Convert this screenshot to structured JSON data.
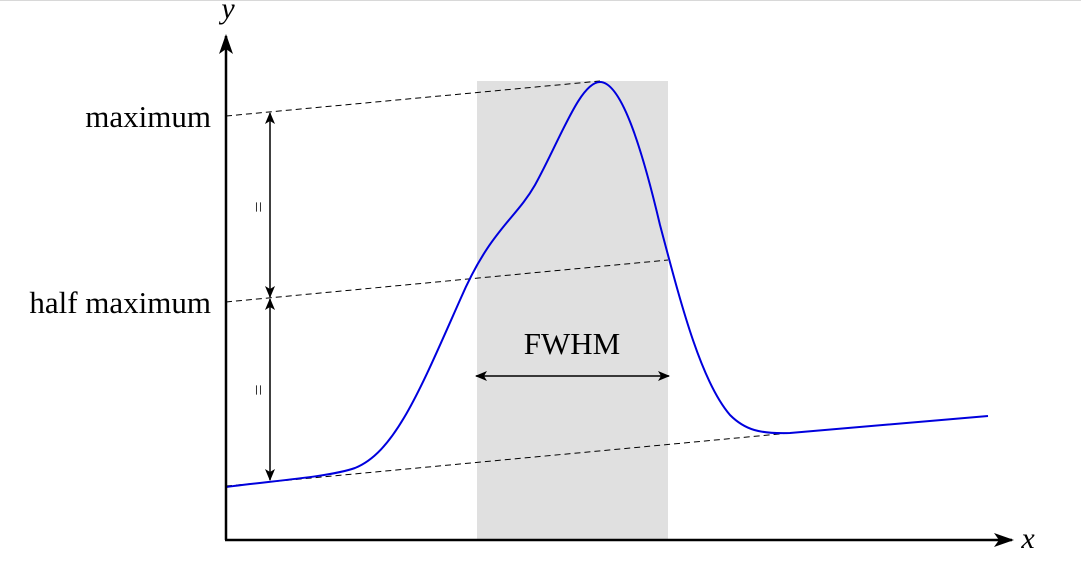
{
  "axes": {
    "x_label": "x",
    "y_label": "y"
  },
  "labels": {
    "maximum": "maximum",
    "half_maximum": "half maximum",
    "fwhm": "FWHM",
    "equal_sign": "="
  },
  "colors": {
    "curve": "#0000dd",
    "shaded_band": "#e0e0e0",
    "axes": "#000000",
    "dashed_lines": "#000000"
  }
}
